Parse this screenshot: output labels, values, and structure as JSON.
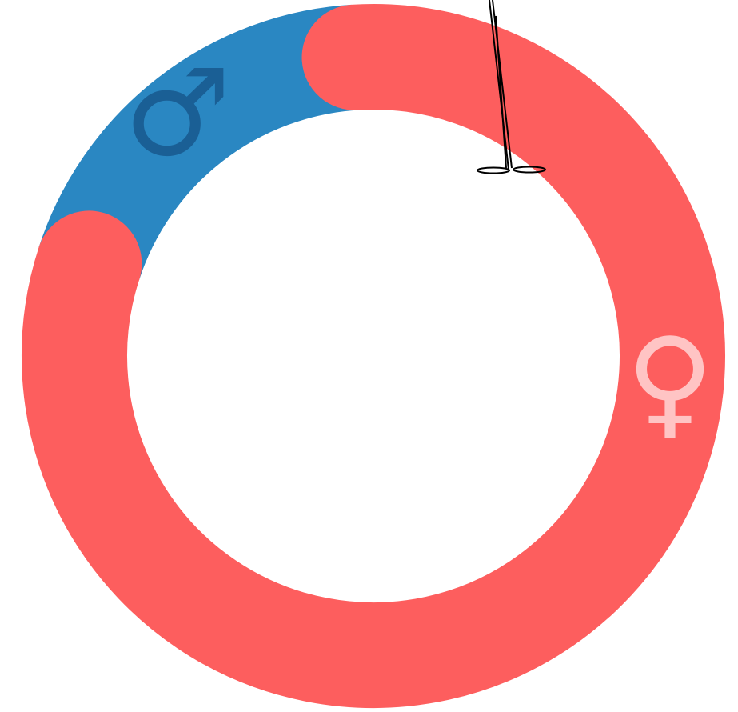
{
  "chart_data": {
    "type": "donut",
    "categories": [
      "♂",
      "♀"
    ],
    "values": [
      19,
      81
    ],
    "colors": [
      "#2a87c2",
      "#fd5e5e"
    ],
    "label_colors": [
      "#1a5f95",
      "#ffc4c4"
    ],
    "start_angle": 288
  }
}
